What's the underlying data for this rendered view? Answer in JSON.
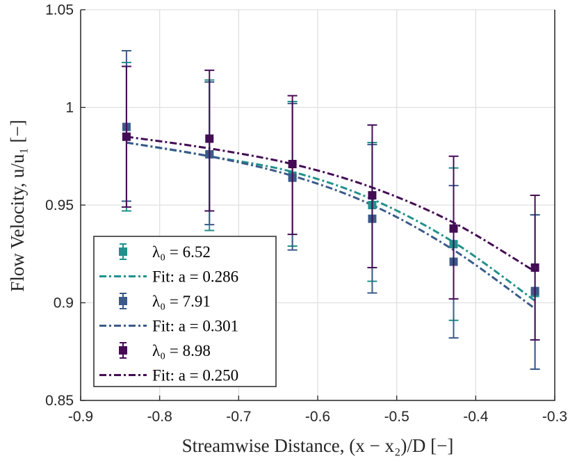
{
  "chart_data": {
    "type": "scatter",
    "xlabel": "Streamwise Distance, (x − x₂)/D [−]",
    "ylabel": "Flow Velocity, u/u₁ [−]",
    "xlim": [
      -0.9,
      -0.3
    ],
    "ylim": [
      0.85,
      1.05
    ],
    "xticks": [
      "-0.9",
      "-0.8",
      "-0.7",
      "-0.6",
      "-0.5",
      "-0.4",
      "-0.3"
    ],
    "yticks": [
      "0.85",
      "0.9",
      "0.95",
      "1",
      "1.05"
    ],
    "grid": true,
    "legend_position": "bottom-left",
    "series": [
      {
        "name": "λ₀ = 6.52",
        "color": "#21918c",
        "x": [
          -0.842,
          -0.737,
          -0.632,
          -0.531,
          -0.428,
          -0.325
        ],
        "y": [
          0.985,
          0.976,
          0.965,
          0.95,
          0.93,
          0.905
        ],
        "err_low": [
          0.947,
          0.937,
          0.929,
          0.911,
          0.891,
          0.866
        ],
        "err_high": [
          1.023,
          1.014,
          1.003,
          0.982,
          0.969,
          0.945
        ],
        "fit_label": "Fit: a = 0.286",
        "fit_y": [
          0.982,
          0.975,
          0.967,
          0.953,
          0.931,
          0.901
        ]
      },
      {
        "name": "λ₀ = 7.91",
        "color": "#3b5a8a",
        "x": [
          -0.842,
          -0.737,
          -0.632,
          -0.531,
          -0.428,
          -0.325
        ],
        "y": [
          0.99,
          0.976,
          0.964,
          0.943,
          0.921,
          0.906
        ],
        "err_low": [
          0.952,
          0.94,
          0.927,
          0.905,
          0.882,
          0.866
        ],
        "err_high": [
          1.029,
          1.013,
          1.002,
          0.981,
          0.96,
          0.945
        ],
        "fit_label": "Fit: a = 0.301",
        "fit_y": [
          0.982,
          0.975,
          0.965,
          0.95,
          0.927,
          0.897
        ]
      },
      {
        "name": "λ₀ = 8.98",
        "color": "#440c54",
        "x": [
          -0.842,
          -0.737,
          -0.632,
          -0.531,
          -0.428,
          -0.325
        ],
        "y": [
          0.985,
          0.984,
          0.971,
          0.955,
          0.938,
          0.918
        ],
        "err_low": [
          0.949,
          0.947,
          0.935,
          0.918,
          0.902,
          0.881
        ],
        "err_high": [
          1.021,
          1.019,
          1.006,
          0.991,
          0.975,
          0.955
        ],
        "fit_label": "Fit: a = 0.250",
        "fit_y": [
          0.985,
          0.979,
          0.971,
          0.959,
          0.941,
          0.916
        ]
      }
    ]
  }
}
